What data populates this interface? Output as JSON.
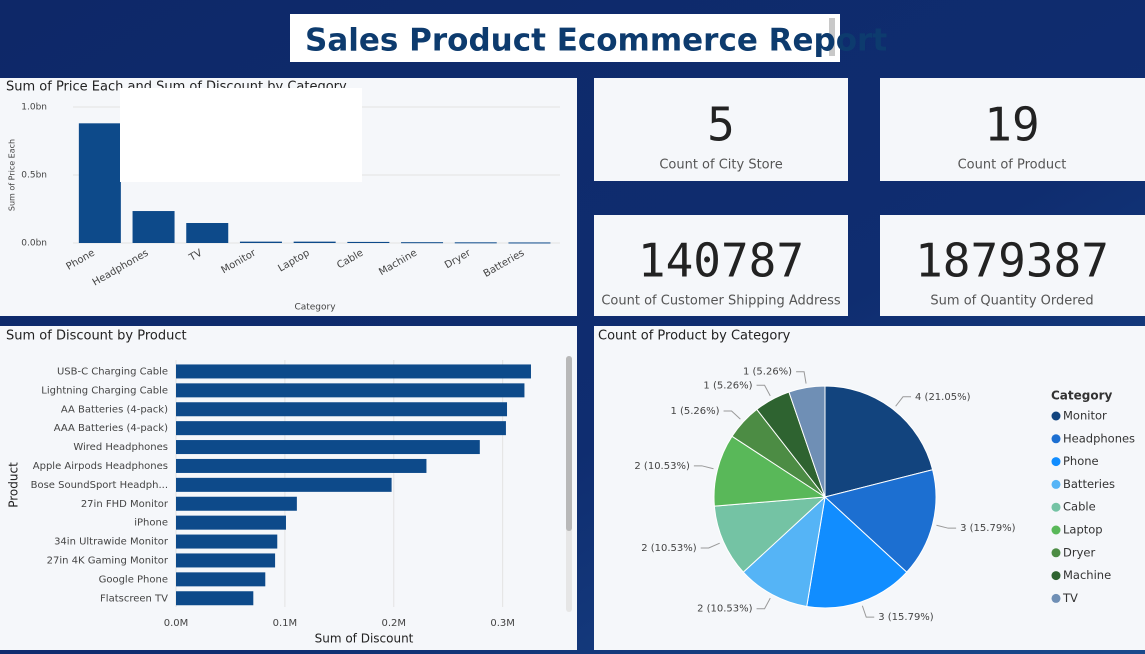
{
  "title": "Sales Product Ecommerce Report",
  "cards": [
    {
      "value": 5,
      "label": "Count of City Store"
    },
    {
      "value": 19,
      "label": "Count of Product"
    },
    {
      "value": 140787,
      "label": "Count of Customer Shipping Address"
    },
    {
      "value": 1879387,
      "label": "Sum of Quantity Ordered"
    }
  ],
  "chart_data": [
    {
      "type": "bar",
      "orientation": "vertical",
      "title": "Sum of Price Each and Sum of Discount by Category",
      "x_label": "Category",
      "y_label": "Sum of Price Each",
      "color": "#0d4a8a",
      "categories": [
        "Phone",
        "Headphones",
        "TV",
        "Monitor",
        "Laptop",
        "Cable",
        "Machine",
        "Dryer",
        "Batteries"
      ],
      "values": [
        0.88,
        0.235,
        0.147,
        0.01,
        0.01,
        0.008,
        0.006,
        0.005,
        0.004
      ],
      "ylim": [
        0,
        1.0
      ],
      "yticks": [
        {
          "value": 0,
          "label": "0.0bn"
        },
        {
          "value": 0.5,
          "label": "0.5bn"
        },
        {
          "value": 1.0,
          "label": "1.0bn"
        }
      ]
    },
    {
      "type": "bar",
      "orientation": "horizontal",
      "title": "Sum of Discount by Product",
      "x_label": "Sum of Discount",
      "y_label": "Product",
      "color": "#0d4a8a",
      "categories": [
        "USB-C Charging Cable",
        "Lightning Charging Cable",
        "AA Batteries (4-pack)",
        "AAA Batteries (4-pack)",
        "Wired Headphones",
        "Apple Airpods Headphones",
        "Bose SoundSport Headph...",
        "27in FHD Monitor",
        "iPhone",
        "34in Ultrawide Monitor",
        "27in 4K Gaming Monitor",
        "Google Phone",
        "Flatscreen TV"
      ],
      "values": [
        0.326,
        0.32,
        0.304,
        0.303,
        0.279,
        0.23,
        0.198,
        0.111,
        0.101,
        0.093,
        0.091,
        0.082,
        0.071
      ],
      "xlim": [
        0,
        0.36
      ],
      "xticks": [
        {
          "value": 0,
          "label": "0.0M"
        },
        {
          "value": 0.1,
          "label": "0.1M"
        },
        {
          "value": 0.2,
          "label": "0.2M"
        },
        {
          "value": 0.3,
          "label": "0.3M"
        }
      ]
    },
    {
      "type": "pie",
      "title": "Count of Product by Category",
      "legend_title": "Category",
      "categories": [
        "Monitor",
        "Headphones",
        "Phone",
        "Batteries",
        "Cable",
        "Laptop",
        "Dryer",
        "Machine",
        "TV"
      ],
      "values": [
        4,
        3,
        3,
        2,
        2,
        2,
        1,
        1,
        1
      ],
      "value_labels": [
        "4 (21.05%)",
        "3 (15.79%)",
        "3 (15.79%)",
        "2 (10.53%)",
        "2 (10.53%)",
        "2 (10.53%)",
        "1 (5.26%)",
        "1 (5.26%)",
        "1 (5.26%)"
      ],
      "colors": [
        "#12447e",
        "#1c6fd1",
        "#118dff",
        "#55b4f6",
        "#74c3a4",
        "#59b859",
        "#4c8c44",
        "#2e6330",
        "#6f8fb5"
      ]
    }
  ]
}
